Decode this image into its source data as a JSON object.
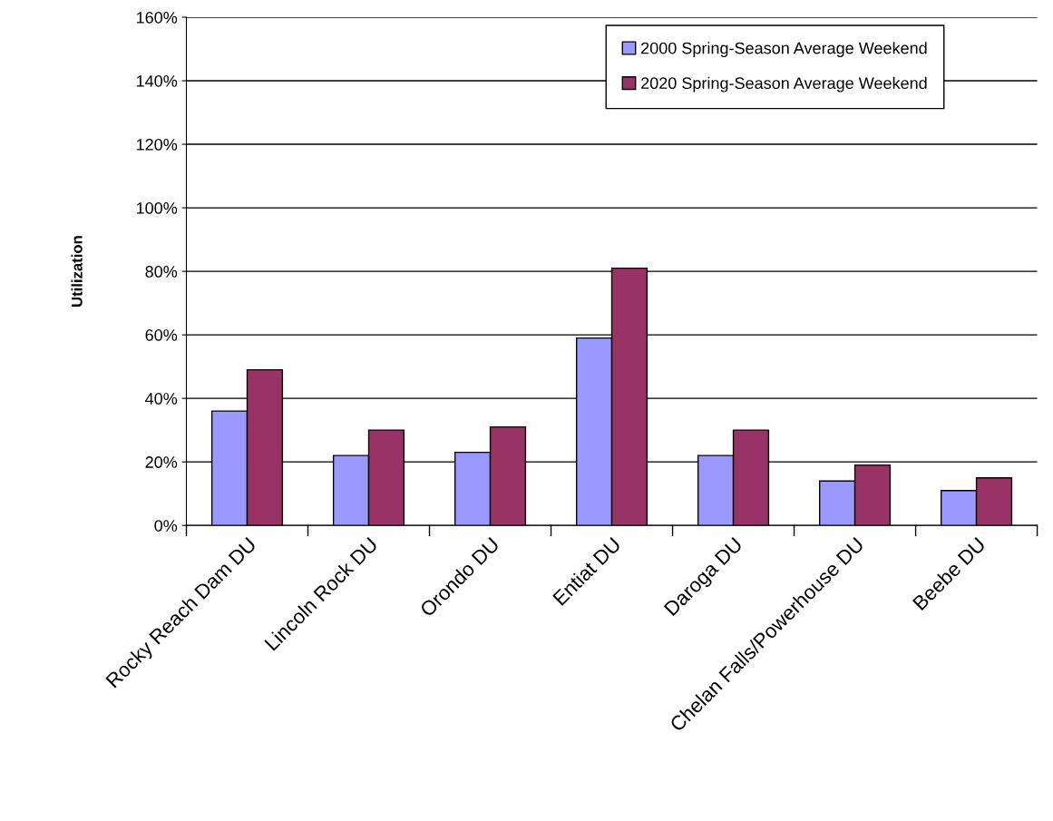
{
  "chart_data": {
    "type": "bar",
    "ylabel": "Utilization",
    "categories": [
      "Rocky Reach Dam DU",
      "Lincoln Rock DU",
      "Orondo DU",
      "Entiat DU",
      "Daroga DU",
      "Chelan Falls/Powerhouse DU",
      "Beebe DU"
    ],
    "series": [
      {
        "name": "2000 Spring-Season Average Weekend",
        "color": "#9999ff",
        "values": [
          36,
          22,
          23,
          59,
          22,
          14,
          11
        ]
      },
      {
        "name": "2020 Spring-Season Average Weekend",
        "color": "#993366",
        "values": [
          49,
          30,
          31,
          81,
          30,
          19,
          15
        ]
      }
    ],
    "ylim": [
      0,
      160
    ],
    "yticks": [
      {
        "value": 0,
        "label": "0%"
      },
      {
        "value": 20,
        "label": "20%"
      },
      {
        "value": 40,
        "label": "40%"
      },
      {
        "value": 60,
        "label": "60%"
      },
      {
        "value": 80,
        "label": "80%"
      },
      {
        "value": 100,
        "label": "100%"
      },
      {
        "value": 120,
        "label": "120%"
      },
      {
        "value": 140,
        "label": "140%"
      },
      {
        "value": 160,
        "label": "160%"
      }
    ],
    "grid": "y",
    "legend": "top right"
  }
}
